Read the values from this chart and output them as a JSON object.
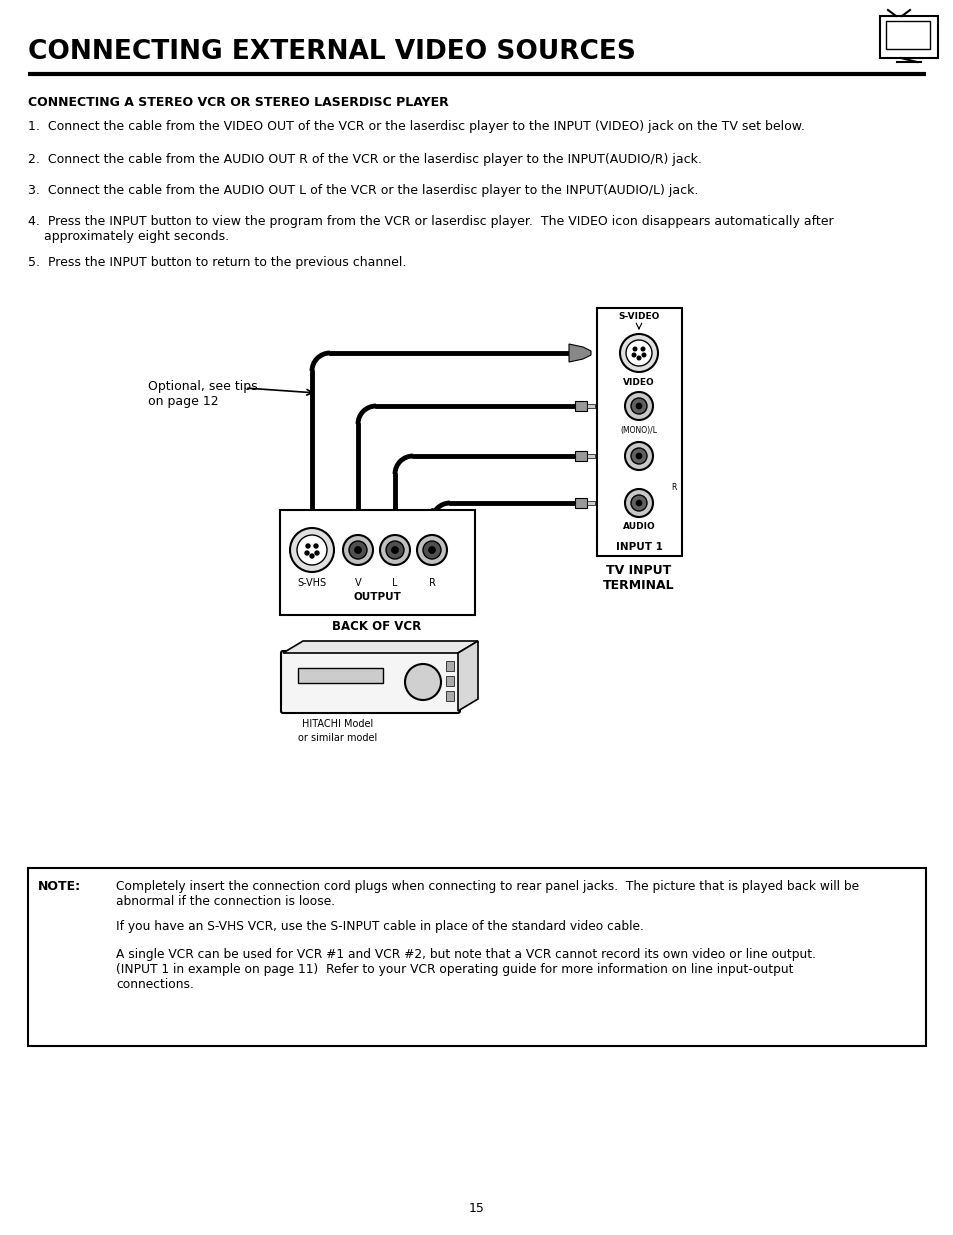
{
  "title": "CONNECTING EXTERNAL VIDEO SOURCES",
  "subtitle": "CONNECTING A STEREO VCR OR STEREO LASERDISC PLAYER",
  "step1": "1.  Connect the cable from the VIDEO OUT of the VCR or the laserdisc player to the INPUT (VIDEO) jack on the TV set below.",
  "step2": "2.  Connect the cable from the AUDIO OUT R of the VCR or the laserdisc player to the INPUT(AUDIO/R) jack.",
  "step3": "3.  Connect the cable from the AUDIO OUT L of the VCR or the laserdisc player to the INPUT(AUDIO/L) jack.",
  "step4a": "4.  Press the INPUT button to view the program from the VCR or laserdisc player.  The VIDEO icon disappears automatically after",
  "step4b": "    approximately eight seconds.",
  "step5": "5.  Press the INPUT button to return to the previous channel.",
  "optional_label": "Optional, see tips\non page 12",
  "tv_input_terminal": "TV INPUT\nTERMINAL",
  "vcr_output": "OUTPUT",
  "back_of_vcr": "BACK OF VCR",
  "hitachi_label1": "HITACHI Model",
  "hitachi_label2": "or similar model",
  "note_label": "NOTE:",
  "note_text1": "Completely insert the connection cord plugs when connecting to rear panel jacks.  The picture that is played back will be\nabnormal if the connection is loose.",
  "note_text2": "If you have an S-VHS VCR, use the S-INPUT cable in place of the standard video cable.",
  "note_text3": "A single VCR can be used for VCR #1 and VCR #2, but note that a VCR cannot record its own video or line output.\n(INPUT 1 in example on page 11)  Refer to your VCR operating guide for more information on line input-output\nconnections.",
  "page_number": "15",
  "bg_color": "#ffffff"
}
